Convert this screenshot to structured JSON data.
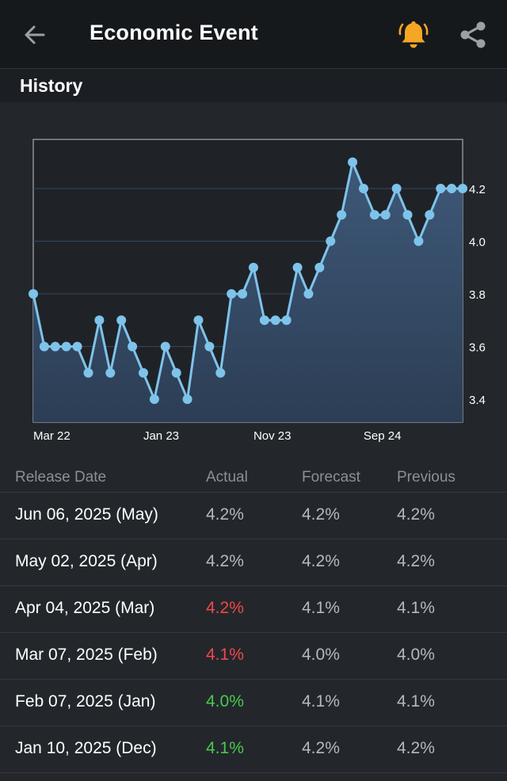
{
  "appbar": {
    "title": "Economic Event",
    "back_icon": "arrow-left-icon",
    "bell_icon": "bell-icon",
    "share_icon": "share-icon",
    "bell_color": "#f5a623"
  },
  "section": {
    "title": "History"
  },
  "chart_data": {
    "type": "line",
    "x_tick_labels": [
      "Mar 22",
      "Jan 23",
      "Nov 23",
      "Sep 24"
    ],
    "y_tick_labels": [
      "4.2",
      "4.0",
      "3.8",
      "3.6",
      "3.4"
    ],
    "ylim": [
      3.4,
      4.2
    ],
    "grid": true,
    "line_color": "#7ec3ea",
    "values": [
      3.8,
      3.6,
      3.6,
      3.6,
      3.6,
      3.5,
      3.7,
      3.5,
      3.7,
      3.6,
      3.5,
      3.4,
      3.6,
      3.5,
      3.4,
      3.7,
      3.6,
      3.5,
      3.8,
      3.8,
      3.9,
      3.7,
      3.7,
      3.7,
      3.9,
      3.8,
      3.9,
      4.0,
      4.1,
      4.3,
      4.2,
      4.1,
      4.1,
      4.2,
      4.1,
      4.0,
      4.1,
      4.2,
      4.2,
      4.2
    ]
  },
  "table": {
    "headers": [
      "Release Date",
      "Actual",
      "Forecast",
      "Previous"
    ],
    "rows": [
      {
        "date": "Jun 06, 2025 (May)",
        "actual": "4.2%",
        "forecast": "4.2%",
        "previous": "4.2%",
        "status": "neutral"
      },
      {
        "date": "May 02, 2025 (Apr)",
        "actual": "4.2%",
        "forecast": "4.2%",
        "previous": "4.2%",
        "status": "neutral"
      },
      {
        "date": "Apr 04, 2025 (Mar)",
        "actual": "4.2%",
        "forecast": "4.1%",
        "previous": "4.1%",
        "status": "red"
      },
      {
        "date": "Mar 07, 2025 (Feb)",
        "actual": "4.1%",
        "forecast": "4.0%",
        "previous": "4.0%",
        "status": "red"
      },
      {
        "date": "Feb 07, 2025 (Jan)",
        "actual": "4.0%",
        "forecast": "4.1%",
        "previous": "4.1%",
        "status": "green"
      },
      {
        "date": "Jan 10, 2025 (Dec)",
        "actual": "4.1%",
        "forecast": "4.2%",
        "previous": "4.2%",
        "status": "green"
      }
    ]
  }
}
